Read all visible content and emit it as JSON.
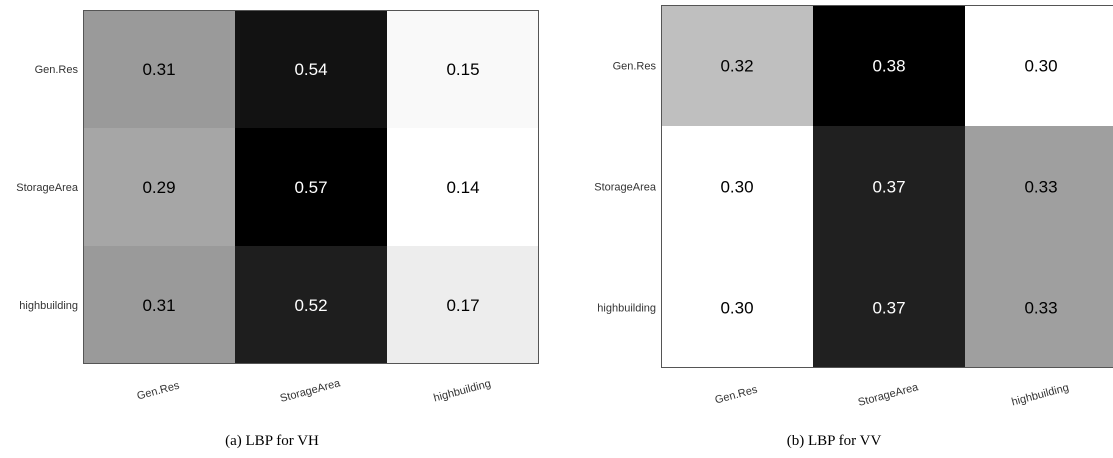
{
  "figures": [
    {
      "caption": "(a) LBP for VH"
    },
    {
      "caption": "(b) LBP for VV"
    }
  ],
  "chart_data": [
    {
      "type": "heatmap",
      "title": "",
      "xlabel": "",
      "ylabel": "",
      "x_categories": [
        "Gen.Res",
        "StorageArea",
        "highbuilding"
      ],
      "y_categories": [
        "Gen.Res",
        "StorageArea",
        "highbuilding"
      ],
      "values": [
        [
          0.31,
          0.54,
          0.15
        ],
        [
          0.29,
          0.57,
          0.14
        ],
        [
          0.31,
          0.52,
          0.17
        ]
      ],
      "value_labels": [
        [
          "0.31",
          "0.54",
          "0.15"
        ],
        [
          "0.29",
          "0.57",
          "0.14"
        ],
        [
          "0.31",
          "0.52",
          "0.17"
        ]
      ],
      "color_scale": "grayscale, higher value = darker",
      "grid": false
    },
    {
      "type": "heatmap",
      "title": "",
      "xlabel": "",
      "ylabel": "",
      "x_categories": [
        "Gen.Res",
        "StorageArea",
        "highbuilding"
      ],
      "y_categories": [
        "Gen.Res",
        "StorageArea",
        "highbuilding"
      ],
      "values": [
        [
          0.32,
          0.38,
          0.3
        ],
        [
          0.3,
          0.37,
          0.33
        ],
        [
          0.3,
          0.37,
          0.33
        ]
      ],
      "value_labels": [
        [
          "0.32",
          "0.38",
          "0.30"
        ],
        [
          "0.30",
          "0.37",
          "0.33"
        ],
        [
          "0.30",
          "0.37",
          "0.33"
        ]
      ],
      "color_scale": "grayscale, higher value = darker",
      "grid": false
    }
  ]
}
